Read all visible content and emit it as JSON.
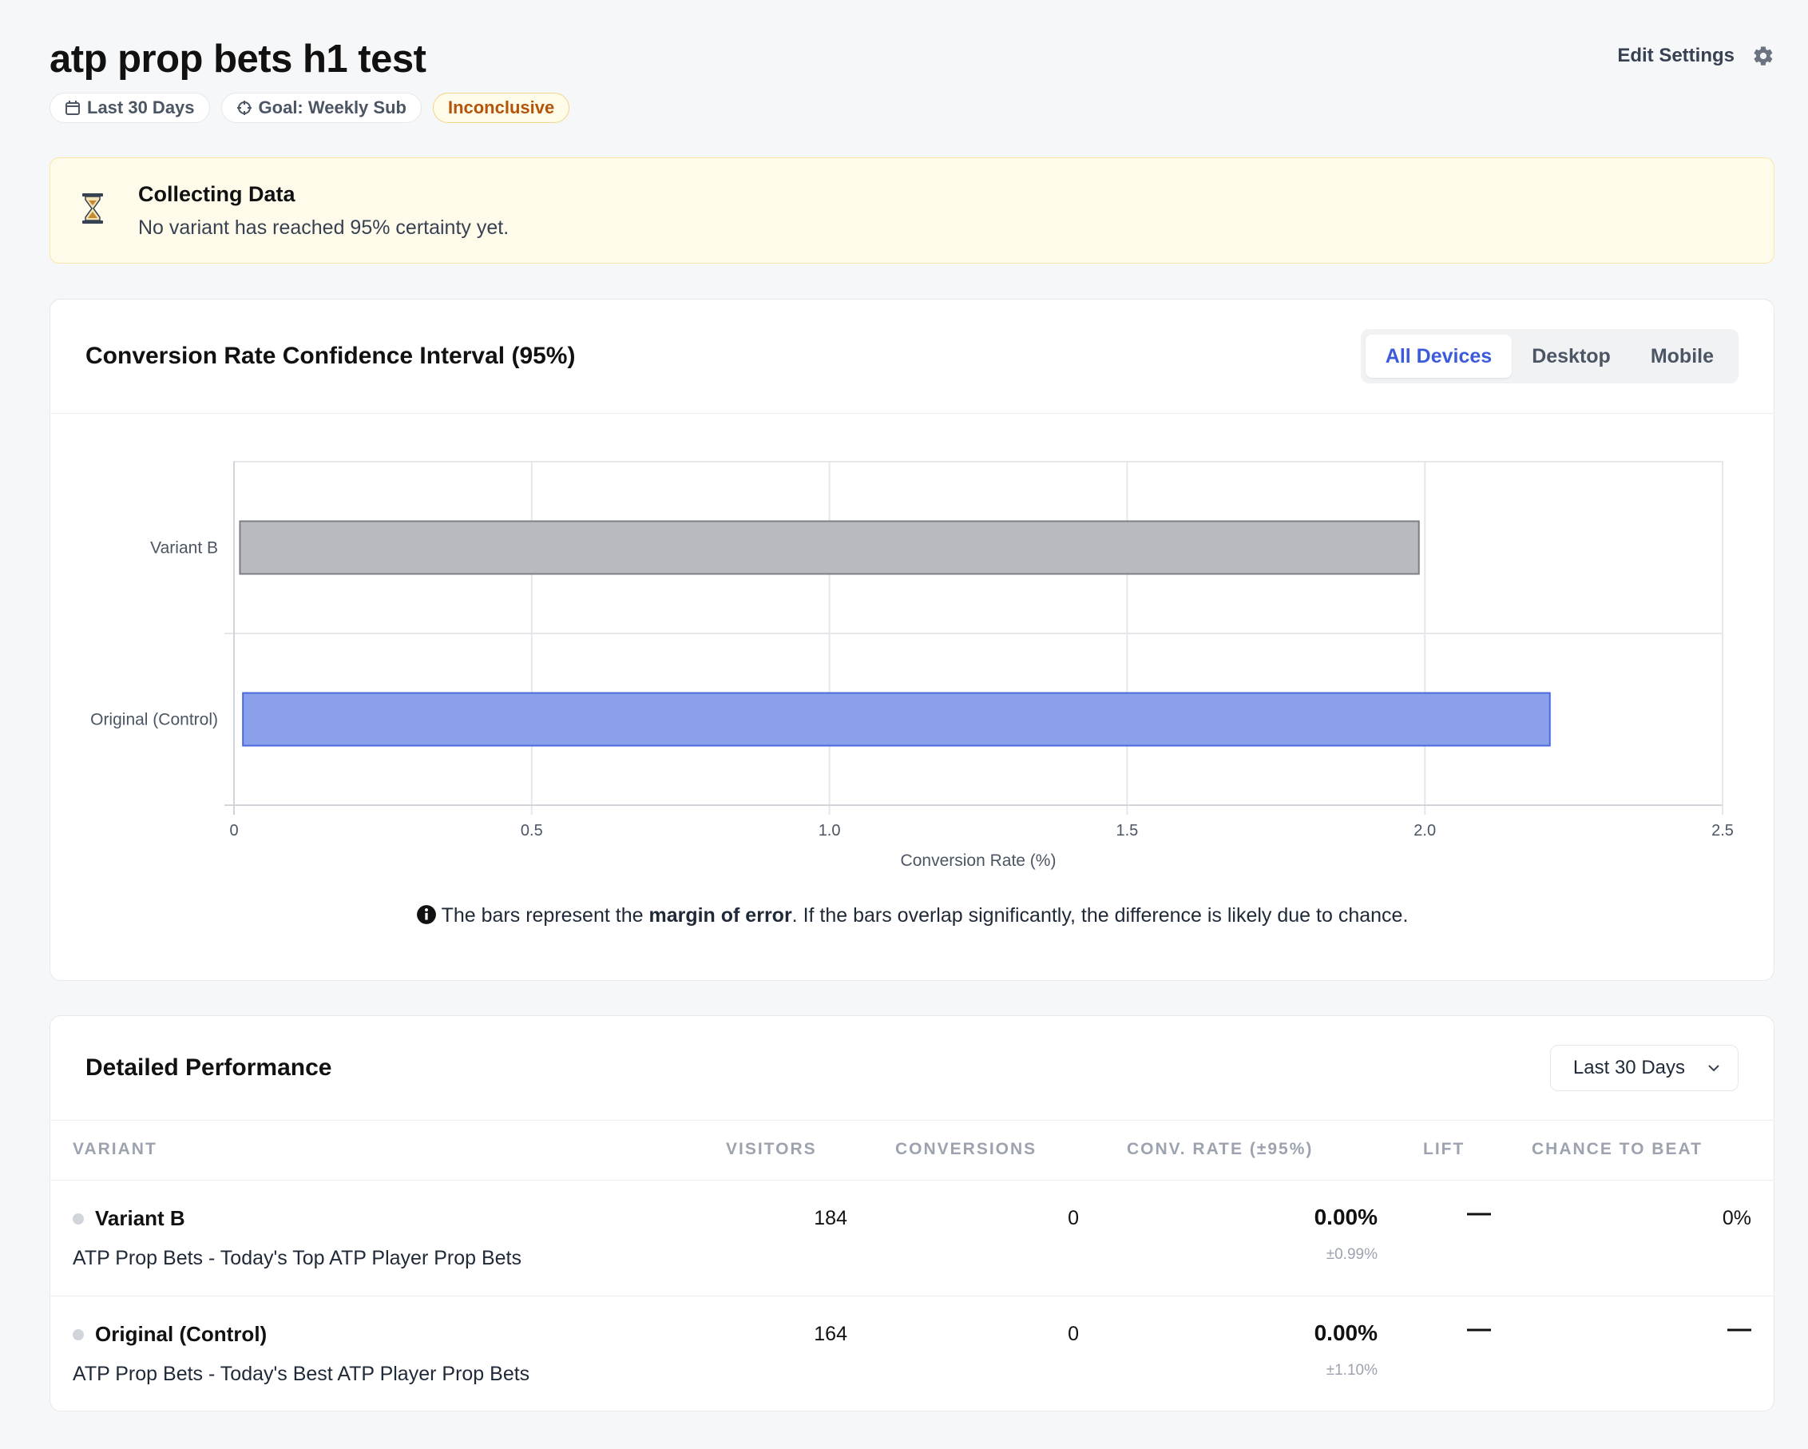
{
  "header": {
    "title": "atp prop bets h1 test",
    "date_range": "Last 30 Days",
    "goal": "Goal: Weekly Sub",
    "status": "Inconclusive",
    "edit_settings": "Edit Settings"
  },
  "alert": {
    "title": "Collecting Data",
    "text": "No variant has reached 95% certainty yet."
  },
  "chart_card": {
    "title": "Conversion Rate Confidence Interval (95%)",
    "segments": [
      "All Devices",
      "Desktop",
      "Mobile"
    ],
    "active_segment": "All Devices",
    "note_pre": "The bars represent the ",
    "note_bold": "margin of error",
    "note_post": ". If the bars overlap significantly, the difference is likely due to chance."
  },
  "chart_data": {
    "type": "bar",
    "orientation": "horizontal",
    "categories": [
      "Variant B",
      "Original (Control)"
    ],
    "ranges": [
      [
        0.01,
        1.99
      ],
      [
        0.015,
        2.21
      ]
    ],
    "colors": [
      "#b8babf",
      "#8aa0ea"
    ],
    "border_colors": [
      "#7c7f86",
      "#4b6bdc"
    ],
    "xlabel": "Conversion Rate (%)",
    "xlim": [
      0,
      2.5
    ],
    "xticks": [
      "0",
      "0.5",
      "1.0",
      "1.5",
      "2.0",
      "2.5"
    ],
    "grid": true
  },
  "table_card": {
    "title": "Detailed Performance",
    "range": "Last 30 Days",
    "columns": [
      "VARIANT",
      "VISITORS",
      "CONVERSIONS",
      "CONV. RATE (±95%)",
      "LIFT",
      "CHANCE TO BEAT"
    ],
    "rows": [
      {
        "name": "Variant B",
        "desc": "ATP Prop Bets - Today's Top ATP Player Prop Bets",
        "visitors": "184",
        "conversions": "0",
        "rate": "0.00%",
        "margin": "±0.99%",
        "lift": "—",
        "chance": "0%"
      },
      {
        "name": "Original (Control)",
        "desc": "ATP Prop Bets - Today's Best ATP Player Prop Bets",
        "visitors": "164",
        "conversions": "0",
        "rate": "0.00%",
        "margin": "±1.10%",
        "lift": "—",
        "chance": "—"
      }
    ]
  }
}
